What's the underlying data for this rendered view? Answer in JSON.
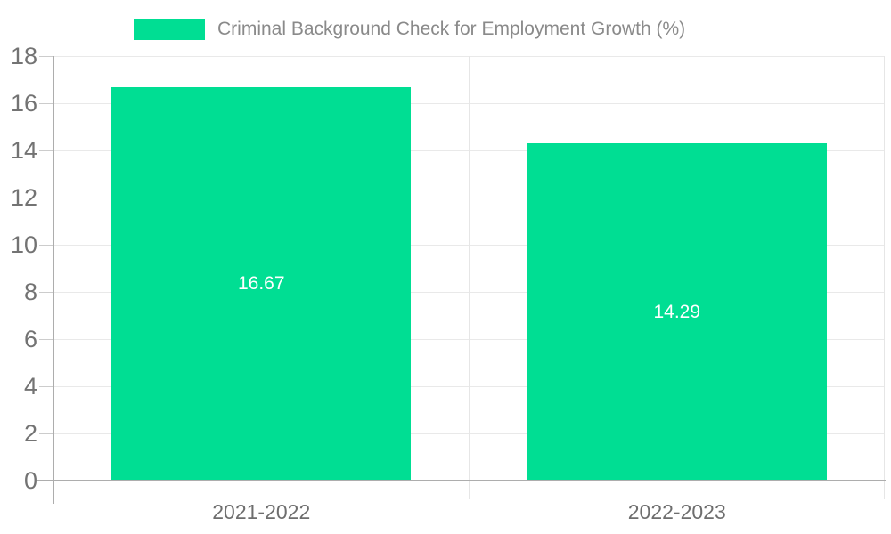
{
  "chart_data": {
    "type": "bar",
    "title": "",
    "legend": "Criminal Background Check for Employment Growth (%)",
    "legend_position": "top",
    "categories": [
      "2021-2022",
      "2022-2023"
    ],
    "values": [
      16.67,
      14.29
    ],
    "value_labels": [
      "16.67",
      "14.29"
    ],
    "ylim": [
      0,
      18
    ],
    "yticks": [
      0,
      2,
      4,
      6,
      8,
      10,
      12,
      14,
      16,
      18
    ],
    "grid": true,
    "colors": {
      "bar": "#00DE93",
      "bar_label_text": "#ffffff",
      "axis_tick_text": "#737373",
      "category_text": "#6e6e6e",
      "legend_text": "#8a8a8a",
      "gridline": "#e9e9e9",
      "axis_line": "#adadad"
    }
  }
}
